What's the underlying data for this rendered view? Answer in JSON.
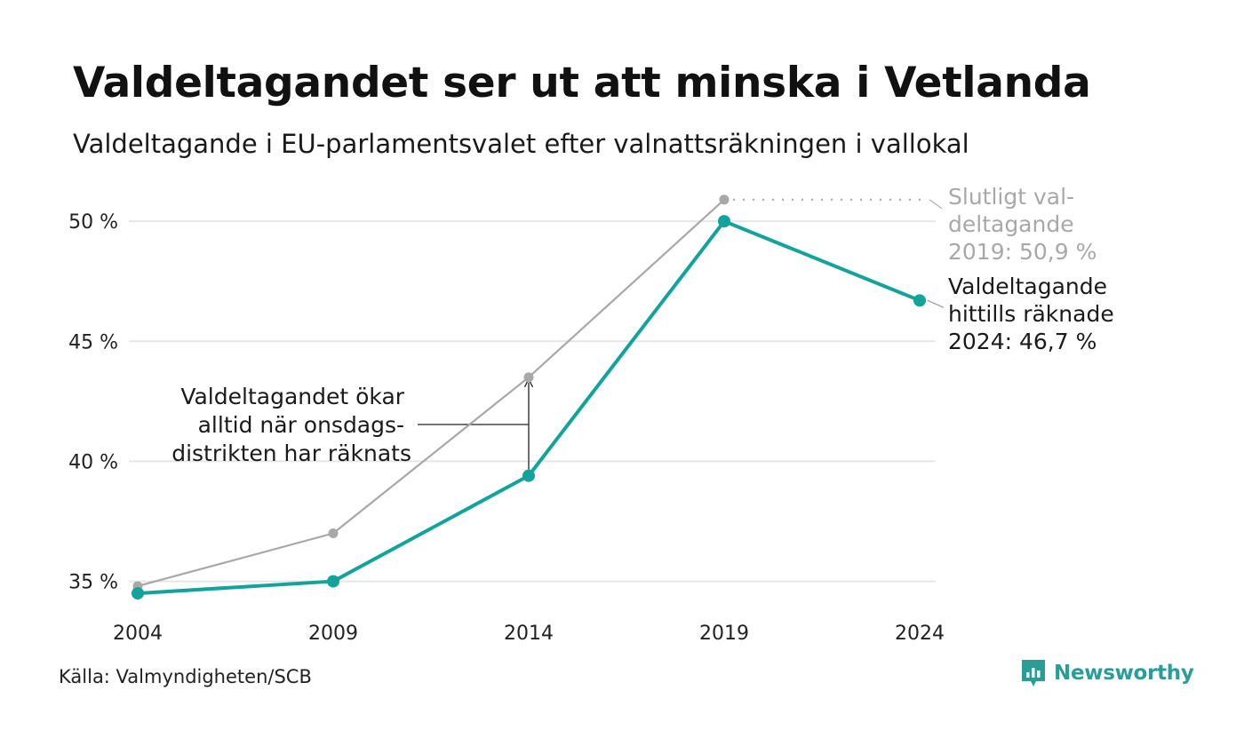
{
  "header": {
    "title": "Valdeltagandet ser ut att minska i Vetlanda",
    "subtitle": "Valdeltagande i EU-parlamentsvalet efter valnattsräkningen i vallokal"
  },
  "chart_data": {
    "type": "line",
    "title": "Valdeltagandet ser ut att minska i Vetlanda",
    "subtitle": "Valdeltagande i EU-parlamentsvalet efter valnattsräkningen i vallokal",
    "x": [
      2004,
      2009,
      2014,
      2019,
      2024
    ],
    "x_tick_labels": [
      "2004",
      "2009",
      "2014",
      "2019",
      "2024"
    ],
    "y_ticks": [
      35,
      40,
      45,
      50
    ],
    "y_tick_labels": [
      "35 %",
      "40 %",
      "45 %",
      "50 %"
    ],
    "ylim": [
      33.8,
      51.3
    ],
    "grid": true,
    "series": [
      {
        "key": "slutligt",
        "values": [
          34.8,
          37.0,
          43.5,
          50.9,
          null
        ],
        "color": "#a8a8a8"
      },
      {
        "key": "valnatt",
        "values": [
          34.5,
          35.0,
          39.4,
          50.0,
          46.7
        ],
        "color": "#12a39a"
      }
    ],
    "annotations": {
      "final_2019": [
        "Slutligt val-",
        "deltagande",
        "2019: 50,9 %"
      ],
      "counted_2024": [
        "Valdeltagande",
        "hittills räknade",
        "2024: 46,7 %"
      ],
      "wednesday": [
        "Valdeltagandet ökar",
        "alltid när onsdags-",
        "distrikten har räknats"
      ]
    }
  },
  "footer": {
    "source": "Källa: Valmyndigheten/SCB",
    "brand": "Newsworthy",
    "brand_icon": "newsworthy-logo-icon"
  },
  "colors": {
    "accent": "#12a39a",
    "grey": "#a8a8a8",
    "grid": "#e6e6e6"
  }
}
